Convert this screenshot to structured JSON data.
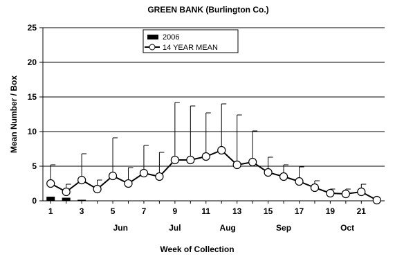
{
  "chart_data": {
    "type": "bar",
    "title": "GREEN BANK (Burlington Co.)",
    "xlabel": "Week of Collection",
    "ylabel": "Mean Number / Box",
    "ylim": [
      0,
      25
    ],
    "yticks": [
      "0",
      "5",
      "10",
      "15",
      "20",
      "25"
    ],
    "xlim": [
      0.5,
      22.5
    ],
    "xticks": [
      "1",
      "3",
      "5",
      "7",
      "9",
      "11",
      "13",
      "15",
      "17",
      "19",
      "21"
    ],
    "month_labels": [
      {
        "label": "Jun",
        "week": 5.5
      },
      {
        "label": "Jul",
        "week": 9.0
      },
      {
        "label": "Aug",
        "week": 12.4
      },
      {
        "label": "Sep",
        "week": 16.0
      },
      {
        "label": "Oct",
        "week": 20.1
      }
    ],
    "grid": true,
    "legend_position": "top-center",
    "legend": [
      {
        "label": "2006",
        "symbol": "bar"
      },
      {
        "label": "14 YEAR MEAN",
        "symbol": "line-marker"
      }
    ],
    "series": [
      {
        "name": "2006",
        "type": "bar",
        "color": "#000000",
        "x": [
          1,
          2,
          3,
          4,
          5,
          6,
          7,
          8,
          9,
          10,
          11,
          12,
          13,
          14,
          15,
          16,
          17,
          18,
          19,
          20,
          21,
          22
        ],
        "values": [
          0.6,
          0.45,
          0.15,
          0.05,
          0,
          0,
          0,
          0,
          0,
          0,
          0,
          0,
          0,
          0,
          0,
          0,
          0,
          0,
          0,
          0,
          0,
          0
        ]
      },
      {
        "name": "14 YEAR MEAN",
        "type": "line",
        "color": "#000000",
        "marker_fill": "#ffffff",
        "x": [
          1,
          2,
          3,
          4,
          5,
          6,
          7,
          8,
          9,
          10,
          11,
          12,
          13,
          14,
          15,
          16,
          17,
          18,
          19,
          20,
          21,
          22
        ],
        "values": [
          2.5,
          1.3,
          3.0,
          1.7,
          3.6,
          2.5,
          4.0,
          3.5,
          5.9,
          5.9,
          6.4,
          7.3,
          5.2,
          5.6,
          4.1,
          3.5,
          2.8,
          1.9,
          1.1,
          1.0,
          1.3,
          0.1
        ],
        "error_upper": [
          5.2,
          2.4,
          6.8,
          3.0,
          9.1,
          4.8,
          8.0,
          7.0,
          14.2,
          13.7,
          12.7,
          14.0,
          12.4,
          10.1,
          6.3,
          5.2,
          4.9,
          2.9,
          1.7,
          1.7,
          2.4,
          0.1
        ]
      }
    ]
  }
}
